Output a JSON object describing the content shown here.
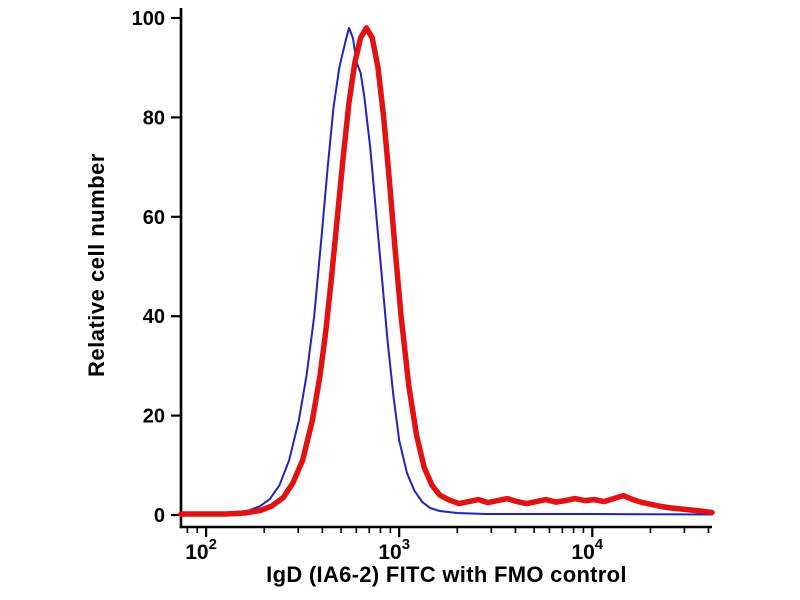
{
  "chart_data": {
    "type": "line",
    "subtype": "flow-cytometry-histogram",
    "title": "",
    "xlabel": "IgD (IA6-2) FITC with FMO control",
    "ylabel": "Relative cell number",
    "x_scale": "log10",
    "x_range_log10": [
      1.87,
      4.62
    ],
    "ylim": [
      0,
      100
    ],
    "grid": false,
    "legend": "none",
    "y_ticks": [
      0,
      20,
      40,
      60,
      80,
      100
    ],
    "x_ticks": [
      {
        "log10": 2,
        "base": "10",
        "exp": "2"
      },
      {
        "log10": 3,
        "base": "10",
        "exp": "3"
      },
      {
        "log10": 4,
        "base": "10",
        "exp": "4"
      }
    ],
    "axis_color": "#000000",
    "series": [
      {
        "id": "blue",
        "name": "FMO control (thin blue curve)",
        "color": "#2222c0",
        "line_width": 2,
        "points_log10x_y": [
          [
            1.87,
            0.3
          ],
          [
            2.05,
            0.3
          ],
          [
            2.15,
            0.5
          ],
          [
            2.22,
            0.9
          ],
          [
            2.28,
            1.8
          ],
          [
            2.33,
            3.2
          ],
          [
            2.38,
            6
          ],
          [
            2.43,
            11
          ],
          [
            2.48,
            19
          ],
          [
            2.52,
            28
          ],
          [
            2.56,
            40
          ],
          [
            2.6,
            57
          ],
          [
            2.63,
            70
          ],
          [
            2.66,
            82
          ],
          [
            2.69,
            90
          ],
          [
            2.72,
            95
          ],
          [
            2.74,
            98
          ],
          [
            2.76,
            96
          ],
          [
            2.78,
            91
          ],
          [
            2.8,
            89
          ],
          [
            2.82,
            84
          ],
          [
            2.85,
            74
          ],
          [
            2.88,
            61
          ],
          [
            2.91,
            48
          ],
          [
            2.94,
            35
          ],
          [
            2.97,
            24
          ],
          [
            3.0,
            15
          ],
          [
            3.04,
            8.5
          ],
          [
            3.08,
            4.8
          ],
          [
            3.12,
            2.6
          ],
          [
            3.16,
            1.4
          ],
          [
            3.21,
            0.8
          ],
          [
            3.3,
            0.4
          ],
          [
            3.45,
            0.2
          ],
          [
            3.7,
            0.2
          ],
          [
            4.0,
            0.2
          ],
          [
            4.3,
            0.15
          ],
          [
            4.62,
            0.1
          ]
        ]
      },
      {
        "id": "red",
        "name": "IgD (IA6-2) FITC (thick red curve)",
        "color": "#e01212",
        "line_width": 5.5,
        "points_log10x_y": [
          [
            1.87,
            0.2
          ],
          [
            2.1,
            0.2
          ],
          [
            2.2,
            0.4
          ],
          [
            2.28,
            0.9
          ],
          [
            2.34,
            1.8
          ],
          [
            2.4,
            3.5
          ],
          [
            2.45,
            6.5
          ],
          [
            2.5,
            11
          ],
          [
            2.55,
            19
          ],
          [
            2.59,
            28
          ],
          [
            2.62,
            37
          ],
          [
            2.65,
            48
          ],
          [
            2.68,
            60
          ],
          [
            2.71,
            72
          ],
          [
            2.74,
            83
          ],
          [
            2.77,
            91
          ],
          [
            2.8,
            96
          ],
          [
            2.83,
            98
          ],
          [
            2.86,
            96
          ],
          [
            2.89,
            90
          ],
          [
            2.92,
            80
          ],
          [
            2.95,
            67
          ],
          [
            2.98,
            53
          ],
          [
            3.01,
            40
          ],
          [
            3.05,
            26
          ],
          [
            3.09,
            16
          ],
          [
            3.13,
            9.5
          ],
          [
            3.17,
            6
          ],
          [
            3.21,
            4
          ],
          [
            3.26,
            3
          ],
          [
            3.31,
            2.3
          ],
          [
            3.36,
            2.7
          ],
          [
            3.41,
            3.1
          ],
          [
            3.46,
            2.5
          ],
          [
            3.51,
            2.9
          ],
          [
            3.56,
            3.3
          ],
          [
            3.61,
            2.7
          ],
          [
            3.66,
            2.3
          ],
          [
            3.71,
            2.7
          ],
          [
            3.76,
            3.1
          ],
          [
            3.81,
            2.6
          ],
          [
            3.86,
            2.9
          ],
          [
            3.91,
            3.3
          ],
          [
            3.96,
            2.9
          ],
          [
            4.01,
            3.1
          ],
          [
            4.06,
            2.7
          ],
          [
            4.11,
            3.3
          ],
          [
            4.16,
            3.9
          ],
          [
            4.21,
            3.1
          ],
          [
            4.26,
            2.5
          ],
          [
            4.31,
            2.1
          ],
          [
            4.36,
            1.7
          ],
          [
            4.41,
            1.4
          ],
          [
            4.46,
            1.2
          ],
          [
            4.51,
            1.0
          ],
          [
            4.56,
            0.8
          ],
          [
            4.62,
            0.5
          ]
        ]
      }
    ]
  }
}
